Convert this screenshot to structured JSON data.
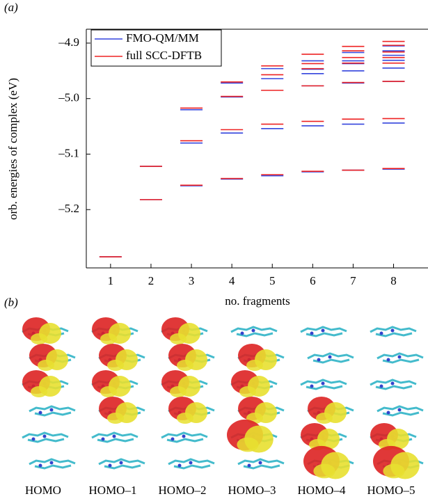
{
  "panel_labels": [
    "(a)",
    "(b)"
  ],
  "chart_data": {
    "type": "level",
    "x_label": "no. fragments",
    "y_label": "orb. energies of complex (eV)",
    "x": [
      1,
      2,
      3,
      4,
      5,
      6,
      7,
      8
    ],
    "xlim": [
      0.4,
      8.8
    ],
    "xticks": [
      1,
      2,
      3,
      4,
      5,
      6,
      7,
      8
    ],
    "ylim": [
      -5.305,
      -4.875
    ],
    "yticks": [
      {
        "value": -4.9,
        "label": "–4.9"
      },
      {
        "value": -5.0,
        "label": "–5.0"
      },
      {
        "value": -5.1,
        "label": "–5.1"
      },
      {
        "value": -5.2,
        "label": "–5.2"
      }
    ],
    "legend": "upper left",
    "series": [
      {
        "name": "FMO-QM/MM",
        "color": "#3344dd",
        "values": [
          [
            -5.285
          ],
          [
            -5.122,
            -5.182
          ],
          [
            -5.02,
            -5.08,
            -5.157
          ],
          [
            -4.972,
            -4.997,
            -5.062,
            -5.145
          ],
          [
            -4.946,
            -4.964,
            -4.985,
            -5.054,
            -5.139
          ],
          [
            -4.932,
            -4.947,
            -4.955,
            -4.977,
            -5.049,
            -5.132
          ],
          [
            -4.917,
            -4.932,
            -4.937,
            -4.95,
            -4.972,
            -5.046,
            -5.129
          ],
          [
            -4.905,
            -4.914,
            -4.922,
            -4.931,
            -4.945,
            -4.969,
            -5.044,
            -5.127
          ]
        ]
      },
      {
        "name": "full SCC-DFTB",
        "color": "#ee2222",
        "values": [
          [
            -5.285
          ],
          [
            -5.122,
            -5.182
          ],
          [
            -5.017,
            -5.076,
            -5.156
          ],
          [
            -4.97,
            -4.996,
            -5.056,
            -5.144
          ],
          [
            -4.941,
            -4.957,
            -4.985,
            -5.046,
            -5.137
          ],
          [
            -4.92,
            -4.937,
            -4.946,
            -4.977,
            -5.041,
            -5.131
          ],
          [
            -4.906,
            -4.914,
            -4.926,
            -4.936,
            -4.971,
            -5.037,
            -5.129
          ],
          [
            -4.897,
            -4.904,
            -4.916,
            -4.926,
            -4.936,
            -4.969,
            -5.036,
            -5.126
          ]
        ]
      }
    ]
  },
  "orbital_labels": [
    "HOMO",
    "HOMO–1",
    "HOMO–2",
    "HOMO–3",
    "HOMO–4",
    "HOMO–5"
  ]
}
